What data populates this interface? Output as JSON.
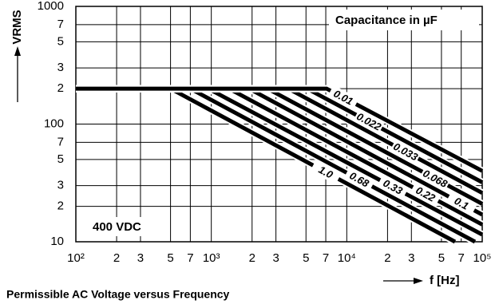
{
  "chart_data": {
    "type": "line",
    "title": "Permissible AC Voltage versus Frequency",
    "ylabel": "VRMS",
    "xlabel": "f [Hz]",
    "annotations": [
      "Capacitance in µF",
      "400 VDC"
    ],
    "xscale": "log",
    "yscale": "log",
    "xlim": [
      100,
      100000
    ],
    "ylim": [
      10,
      1000
    ],
    "xticks": [
      {
        "value": 100,
        "label": "10²"
      },
      {
        "value": 200,
        "label": "2"
      },
      {
        "value": 300,
        "label": "3"
      },
      {
        "value": 500,
        "label": "5"
      },
      {
        "value": 700,
        "label": "7"
      },
      {
        "value": 1000,
        "label": "10³"
      },
      {
        "value": 2000,
        "label": "2"
      },
      {
        "value": 3000,
        "label": "3"
      },
      {
        "value": 5000,
        "label": "5"
      },
      {
        "value": 7000,
        "label": "7"
      },
      {
        "value": 10000,
        "label": "10⁴"
      },
      {
        "value": 20000,
        "label": "2"
      },
      {
        "value": 30000,
        "label": "3"
      },
      {
        "value": 50000,
        "label": "5"
      },
      {
        "value": 70000,
        "label": "7"
      },
      {
        "value": 100000,
        "label": "10⁵"
      }
    ],
    "yticks": [
      10,
      {
        "value": 20,
        "label": "2"
      },
      {
        "value": 30,
        "label": "3"
      },
      {
        "value": 50,
        "label": "5"
      },
      {
        "value": 70,
        "label": "7"
      },
      100,
      {
        "value": 200,
        "label": "2"
      },
      {
        "value": 300,
        "label": "3"
      },
      {
        "value": 500,
        "label": "5"
      },
      {
        "value": 700,
        "label": "7"
      },
      1000
    ],
    "grid": true,
    "series": [
      {
        "name": "1.0",
        "color": "#000000",
        "x": [
          100,
          500,
          63000
        ],
        "values": [
          200,
          200,
          10
        ]
      },
      {
        "name": "0.68",
        "color": "#000000",
        "x": [
          100,
          700,
          88500
        ],
        "values": [
          200,
          200,
          10
        ]
      },
      {
        "name": "0.33",
        "color": "#000000",
        "x": [
          100,
          950,
          100000
        ],
        "values": [
          200,
          200,
          11.5
        ]
      },
      {
        "name": "0.22",
        "color": "#000000",
        "x": [
          100,
          1350,
          100000
        ],
        "values": [
          200,
          200,
          14
        ]
      },
      {
        "name": "0.1",
        "color": "#000000",
        "x": [
          100,
          1900,
          100000
        ],
        "values": [
          200,
          200,
          17
        ]
      },
      {
        "name": "0.068",
        "color": "#000000",
        "x": [
          100,
          2600,
          100000
        ],
        "values": [
          200,
          200,
          21
        ]
      },
      {
        "name": "0.033",
        "color": "#000000",
        "x": [
          100,
          3700,
          100000
        ],
        "values": [
          200,
          200,
          26
        ]
      },
      {
        "name": "0.022",
        "color": "#000000",
        "x": [
          100,
          5100,
          100000
        ],
        "values": [
          200,
          200,
          32
        ]
      },
      {
        "name": "0.01",
        "color": "#000000",
        "x": [
          100,
          7100,
          100000
        ],
        "values": [
          200,
          200,
          40
        ]
      }
    ]
  }
}
